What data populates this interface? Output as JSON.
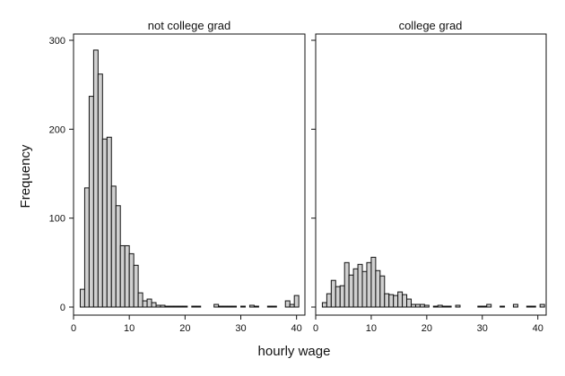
{
  "chart_data": {
    "type": "bar",
    "xlabel": "hourly wage",
    "ylabel": "Frequency",
    "xlim": [
      0,
      41.5
    ],
    "ylim": [
      0,
      300
    ],
    "bin_width": 0.8,
    "xticks": [
      0,
      10,
      20,
      30,
      40
    ],
    "yticks": [
      0,
      100,
      200,
      300
    ],
    "bar_fill": "#d0d0d0",
    "bar_stroke": "#111111",
    "panels": [
      {
        "title": "not college grad",
        "bins": [
          {
            "x": 1.6,
            "y": 20
          },
          {
            "x": 2.4,
            "y": 134
          },
          {
            "x": 3.2,
            "y": 237
          },
          {
            "x": 4.0,
            "y": 289
          },
          {
            "x": 4.8,
            "y": 262
          },
          {
            "x": 5.6,
            "y": 189
          },
          {
            "x": 6.4,
            "y": 191
          },
          {
            "x": 7.2,
            "y": 136
          },
          {
            "x": 8.0,
            "y": 114
          },
          {
            "x": 8.8,
            "y": 69
          },
          {
            "x": 9.6,
            "y": 69
          },
          {
            "x": 10.4,
            "y": 60
          },
          {
            "x": 11.2,
            "y": 47
          },
          {
            "x": 12.0,
            "y": 16
          },
          {
            "x": 12.8,
            "y": 7
          },
          {
            "x": 13.6,
            "y": 9
          },
          {
            "x": 14.4,
            "y": 5
          },
          {
            "x": 15.2,
            "y": 2
          },
          {
            "x": 16.0,
            "y": 2
          },
          {
            "x": 16.8,
            "y": 1
          },
          {
            "x": 17.6,
            "y": 1
          },
          {
            "x": 18.4,
            "y": 1
          },
          {
            "x": 19.2,
            "y": 1
          },
          {
            "x": 20.0,
            "y": 1
          },
          {
            "x": 21.6,
            "y": 1
          },
          {
            "x": 22.4,
            "y": 1
          },
          {
            "x": 25.6,
            "y": 3
          },
          {
            "x": 26.4,
            "y": 1
          },
          {
            "x": 27.2,
            "y": 1
          },
          {
            "x": 28.0,
            "y": 1
          },
          {
            "x": 28.8,
            "y": 1
          },
          {
            "x": 30.4,
            "y": 1
          },
          {
            "x": 32.0,
            "y": 2
          },
          {
            "x": 32.8,
            "y": 1
          },
          {
            "x": 35.2,
            "y": 1
          },
          {
            "x": 36.0,
            "y": 1
          },
          {
            "x": 38.4,
            "y": 7
          },
          {
            "x": 39.2,
            "y": 3
          },
          {
            "x": 40.0,
            "y": 13
          }
        ]
      },
      {
        "title": "college grad",
        "bins": [
          {
            "x": 1.6,
            "y": 5
          },
          {
            "x": 2.4,
            "y": 15
          },
          {
            "x": 3.2,
            "y": 30
          },
          {
            "x": 4.0,
            "y": 23
          },
          {
            "x": 4.8,
            "y": 24
          },
          {
            "x": 5.6,
            "y": 50
          },
          {
            "x": 6.4,
            "y": 36
          },
          {
            "x": 7.2,
            "y": 43
          },
          {
            "x": 8.0,
            "y": 48
          },
          {
            "x": 8.8,
            "y": 40
          },
          {
            "x": 9.6,
            "y": 50
          },
          {
            "x": 10.4,
            "y": 56
          },
          {
            "x": 11.2,
            "y": 41
          },
          {
            "x": 12.0,
            "y": 35
          },
          {
            "x": 12.8,
            "y": 15
          },
          {
            "x": 13.6,
            "y": 14
          },
          {
            "x": 14.4,
            "y": 13
          },
          {
            "x": 15.2,
            "y": 17
          },
          {
            "x": 16.0,
            "y": 14
          },
          {
            "x": 16.8,
            "y": 9
          },
          {
            "x": 17.6,
            "y": 3
          },
          {
            "x": 18.4,
            "y": 3
          },
          {
            "x": 19.2,
            "y": 3
          },
          {
            "x": 20.0,
            "y": 2
          },
          {
            "x": 21.6,
            "y": 1
          },
          {
            "x": 22.4,
            "y": 2
          },
          {
            "x": 23.2,
            "y": 1
          },
          {
            "x": 24.0,
            "y": 1
          },
          {
            "x": 25.6,
            "y": 2
          },
          {
            "x": 29.6,
            "y": 1
          },
          {
            "x": 30.4,
            "y": 1
          },
          {
            "x": 31.2,
            "y": 3
          },
          {
            "x": 33.6,
            "y": 1
          },
          {
            "x": 36.0,
            "y": 3
          },
          {
            "x": 38.4,
            "y": 1
          },
          {
            "x": 39.2,
            "y": 1
          },
          {
            "x": 40.8,
            "y": 3
          }
        ]
      }
    ]
  }
}
